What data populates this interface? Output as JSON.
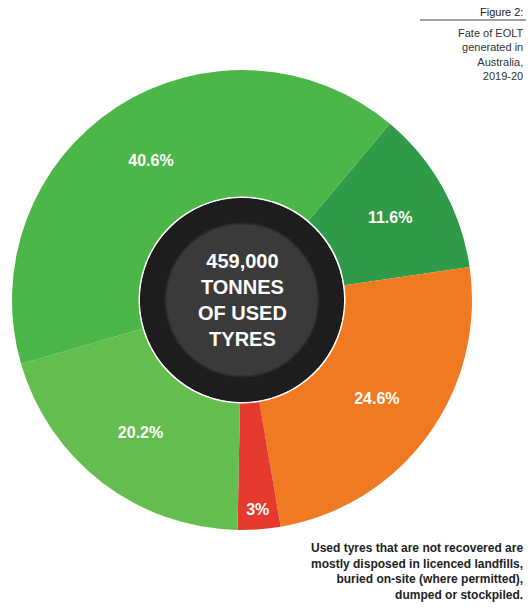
{
  "chart_data": {
    "type": "pie",
    "title": "Figure 2:",
    "subtitle": "Fate of EOLT generated in Australia, 2019-20",
    "center_text": "459,000 TONNES OF USED TYRES",
    "annotations": [
      "Used tyres that are not recovered are mostly disposed in licenced landfills, buried on-site (where permitted), dumped or stockpiled."
    ],
    "values": [
      11.6,
      24.6,
      3,
      20.2,
      40.6
    ],
    "value_labels": [
      "11.6%",
      "24.6%",
      "3%",
      "20.2%",
      "40.6%"
    ],
    "colors": [
      "#2f9a47",
      "#f07a22",
      "#e63a2e",
      "#64bd4f",
      "#4cb649"
    ],
    "data_labels": true
  }
}
